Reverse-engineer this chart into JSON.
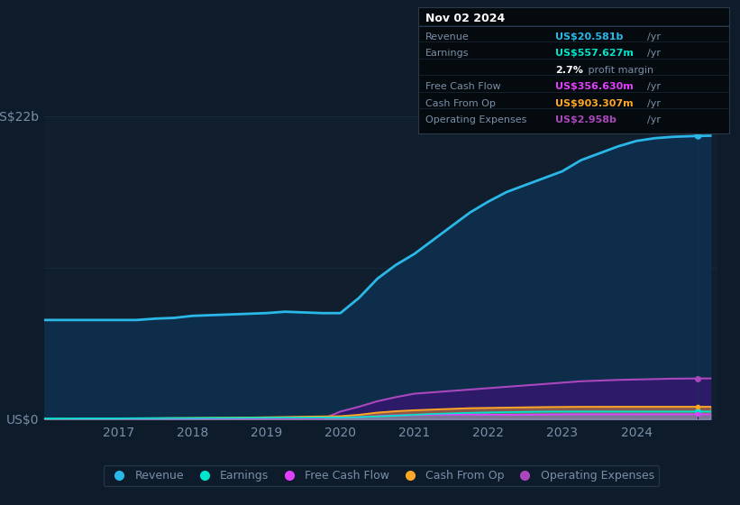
{
  "background_color": "#0d1b2a",
  "plot_bg_color": "#111e2e",
  "x_years": [
    2016.0,
    2016.25,
    2016.5,
    2016.75,
    2017.0,
    2017.25,
    2017.5,
    2017.75,
    2018.0,
    2018.25,
    2018.5,
    2018.75,
    2019.0,
    2019.25,
    2019.5,
    2019.75,
    2020.0,
    2020.25,
    2020.5,
    2020.75,
    2021.0,
    2021.25,
    2021.5,
    2021.75,
    2022.0,
    2022.25,
    2022.5,
    2022.75,
    2023.0,
    2023.25,
    2023.5,
    2023.75,
    2024.0,
    2024.25,
    2024.5,
    2024.75,
    2025.0
  ],
  "revenue": [
    7.2,
    7.2,
    7.2,
    7.2,
    7.2,
    7.2,
    7.3,
    7.35,
    7.5,
    7.55,
    7.6,
    7.65,
    7.7,
    7.8,
    7.75,
    7.7,
    7.7,
    8.8,
    10.2,
    11.2,
    12.0,
    13.0,
    14.0,
    15.0,
    15.8,
    16.5,
    17.0,
    17.5,
    18.0,
    18.8,
    19.3,
    19.8,
    20.2,
    20.4,
    20.5,
    20.55,
    20.581
  ],
  "operating_expenses": [
    0.0,
    0.0,
    0.0,
    0.0,
    0.0,
    0.0,
    0.0,
    0.0,
    0.0,
    0.0,
    0.0,
    0.0,
    0.0,
    0.0,
    0.0,
    0.0,
    0.55,
    0.9,
    1.3,
    1.6,
    1.85,
    1.95,
    2.05,
    2.15,
    2.25,
    2.35,
    2.45,
    2.55,
    2.65,
    2.75,
    2.8,
    2.85,
    2.88,
    2.91,
    2.94,
    2.95,
    2.958
  ],
  "earnings": [
    0.05,
    0.05,
    0.06,
    0.06,
    0.06,
    0.07,
    0.07,
    0.08,
    0.08,
    0.09,
    0.09,
    0.1,
    0.1,
    0.11,
    0.11,
    0.12,
    0.12,
    0.15,
    0.2,
    0.25,
    0.32,
    0.38,
    0.42,
    0.46,
    0.49,
    0.51,
    0.53,
    0.55,
    0.555,
    0.557,
    0.557,
    0.557,
    0.557,
    0.557,
    0.557,
    0.557,
    0.5576
  ],
  "free_cash_flow": [
    0.01,
    0.01,
    0.02,
    0.02,
    0.02,
    0.03,
    0.03,
    0.04,
    0.04,
    0.05,
    0.05,
    0.06,
    0.07,
    0.08,
    0.09,
    0.1,
    0.1,
    0.15,
    0.22,
    0.28,
    0.3,
    0.32,
    0.33,
    0.34,
    0.33,
    0.32,
    0.33,
    0.34,
    0.35,
    0.355,
    0.355,
    0.355,
    0.355,
    0.356,
    0.356,
    0.3566,
    0.35663
  ],
  "cash_from_op": [
    0.02,
    0.03,
    0.03,
    0.04,
    0.05,
    0.06,
    0.07,
    0.08,
    0.09,
    0.1,
    0.11,
    0.12,
    0.14,
    0.16,
    0.18,
    0.2,
    0.22,
    0.32,
    0.48,
    0.58,
    0.65,
    0.7,
    0.75,
    0.8,
    0.82,
    0.84,
    0.86,
    0.88,
    0.89,
    0.9,
    0.9,
    0.903,
    0.903,
    0.903,
    0.903,
    0.9033,
    0.90331
  ],
  "revenue_color": "#2ab8e8",
  "revenue_fill": "#0d2d4a",
  "earnings_color": "#00e5cc",
  "free_cash_flow_color": "#e040fb",
  "cash_from_op_color": "#ffa726",
  "operating_expenses_color": "#ab47bc",
  "operating_expenses_fill": "#2d1b69",
  "grid_color": "#1a2e44",
  "tick_label_color": "#7a8fa8",
  "xticks": [
    2017,
    2018,
    2019,
    2020,
    2021,
    2022,
    2023,
    2024
  ],
  "ylim": [
    0,
    22
  ],
  "xlim": [
    2016.0,
    2025.1
  ],
  "info_box": {
    "date": "Nov 02 2024",
    "revenue_label": "Revenue",
    "revenue_value": "US$20.581b",
    "revenue_value_color": "#2ab8e8",
    "earnings_label": "Earnings",
    "earnings_value": "US$557.627m",
    "earnings_value_color": "#00e5cc",
    "margin_pct": "2.7%",
    "margin_label": " profit margin",
    "free_cash_flow_label": "Free Cash Flow",
    "free_cash_flow_value": "US$356.630m",
    "free_cash_flow_value_color": "#e040fb",
    "cash_from_op_label": "Cash From Op",
    "cash_from_op_value": "US$903.307m",
    "cash_from_op_value_color": "#ffa726",
    "operating_expenses_label": "Operating Expenses",
    "operating_expenses_value": "US$2.958b",
    "operating_expenses_value_color": "#ab47bc",
    "bg_color": "#050a0f",
    "border_color": "#2a3a4a",
    "text_color": "#7a8fa8",
    "bright_text": "#ffffff"
  },
  "legend": [
    {
      "label": "Revenue",
      "color": "#2ab8e8"
    },
    {
      "label": "Earnings",
      "color": "#00e5cc"
    },
    {
      "label": "Free Cash Flow",
      "color": "#e040fb"
    },
    {
      "label": "Cash From Op",
      "color": "#ffa726"
    },
    {
      "label": "Operating Expenses",
      "color": "#ab47bc"
    }
  ],
  "legend_bg": "#0d1b2a",
  "legend_border": "#2a3a4a"
}
